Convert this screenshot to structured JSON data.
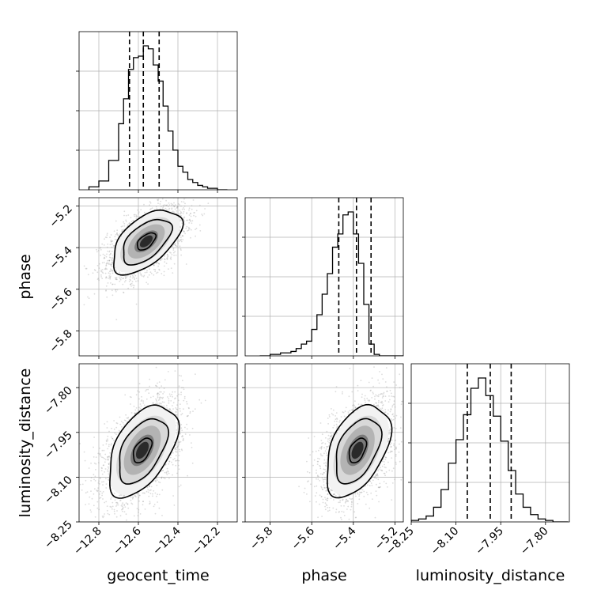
{
  "chart_data": {
    "type": "corner",
    "parameters": [
      "geocent_time",
      "phase",
      "luminosity_distance"
    ],
    "axes": {
      "geocent_time": {
        "label": "geocent_time",
        "range": [
          -12.9,
          -12.1
        ],
        "ticks": [
          -12.8,
          -12.6,
          -12.4,
          -12.2
        ],
        "tick_labels": [
          "−12.8",
          "−12.6",
          "−12.4",
          "−12.2"
        ]
      },
      "phase": {
        "label": "phase",
        "range": [
          -5.92,
          -5.16
        ],
        "ticks": [
          -5.8,
          -5.6,
          -5.4,
          -5.2
        ],
        "tick_labels": [
          "−5.8",
          "−5.6",
          "−5.4",
          "−5.2"
        ]
      },
      "luminosity_distance": {
        "label": "luminosity_distance",
        "range": [
          -8.25,
          -7.72
        ],
        "ticks": [
          -8.25,
          -8.1,
          -7.95,
          -7.8
        ],
        "tick_labels": [
          "−8.25",
          "−8.10",
          "−7.95",
          "−7.80"
        ]
      }
    },
    "histograms": {
      "geocent_time": {
        "bin_edges": [
          -12.85,
          -12.8,
          -12.75,
          -12.7,
          -12.675,
          -12.65,
          -12.625,
          -12.6,
          -12.575,
          -12.55,
          -12.525,
          -12.5,
          -12.475,
          -12.45,
          -12.425,
          -12.4,
          -12.375,
          -12.35,
          -12.325,
          -12.3,
          -12.275,
          -12.25,
          -12.225,
          -12.2,
          -12.15
        ],
        "counts": [
          0.02,
          0.06,
          0.2,
          0.45,
          0.62,
          0.82,
          0.9,
          0.91,
          0.98,
          0.96,
          0.85,
          0.74,
          0.57,
          0.4,
          0.27,
          0.16,
          0.12,
          0.07,
          0.05,
          0.03,
          0.02,
          0.01,
          0.01,
          0.0
        ],
        "quantiles": [
          -12.645,
          -12.575,
          -12.495
        ]
      },
      "phase": {
        "bin_edges": [
          -5.85,
          -5.8,
          -5.75,
          -5.7,
          -5.675,
          -5.65,
          -5.625,
          -5.6,
          -5.575,
          -5.55,
          -5.525,
          -5.5,
          -5.475,
          -5.45,
          -5.425,
          -5.4,
          -5.375,
          -5.35,
          -5.325,
          -5.3,
          -5.275,
          -5.25,
          -5.225,
          -5.2,
          -5.16
        ],
        "counts": [
          0.0,
          0.01,
          0.02,
          0.03,
          0.05,
          0.08,
          0.1,
          0.18,
          0.28,
          0.42,
          0.56,
          0.74,
          0.83,
          0.96,
          0.98,
          0.83,
          0.63,
          0.35,
          0.08,
          0.01,
          0.0,
          0.0,
          0.0,
          0.0
        ],
        "quantiles": [
          -5.47,
          -5.385,
          -5.315
        ]
      },
      "luminosity_distance": {
        "bin_edges": [
          -8.25,
          -8.225,
          -8.2,
          -8.175,
          -8.15,
          -8.125,
          -8.1,
          -8.075,
          -8.05,
          -8.025,
          -8.0,
          -7.975,
          -7.95,
          -7.925,
          -7.9,
          -7.875,
          -7.85,
          -7.825,
          -7.8,
          -7.775,
          -7.75,
          -7.725
        ],
        "counts": [
          0.01,
          0.02,
          0.04,
          0.1,
          0.22,
          0.4,
          0.56,
          0.73,
          0.91,
          0.98,
          0.86,
          0.72,
          0.55,
          0.35,
          0.19,
          0.1,
          0.05,
          0.02,
          0.01,
          0.0,
          0.0
        ],
        "quantiles": [
          -8.062,
          -7.985,
          -7.915
        ]
      }
    },
    "pairs": [
      {
        "x": "geocent_time",
        "y": "phase",
        "center": [
          -12.56,
          -5.37
        ],
        "sigma": [
          0.085,
          0.075
        ],
        "rho": 0.55,
        "levels": 3
      },
      {
        "x": "geocent_time",
        "y": "luminosity_distance",
        "center": [
          -12.58,
          -8.01
        ],
        "sigma": [
          0.085,
          0.075
        ],
        "rho": 0.5,
        "levels": 3
      },
      {
        "x": "phase",
        "y": "luminosity_distance",
        "center": [
          -5.38,
          -8.01
        ],
        "sigma": [
          0.075,
          0.075
        ],
        "rho": 0.45,
        "levels": 3
      }
    ],
    "grid": true,
    "colors": {
      "line": "#000000",
      "grid": "#b0b0b0",
      "scatter": "#9a9a9a"
    }
  }
}
